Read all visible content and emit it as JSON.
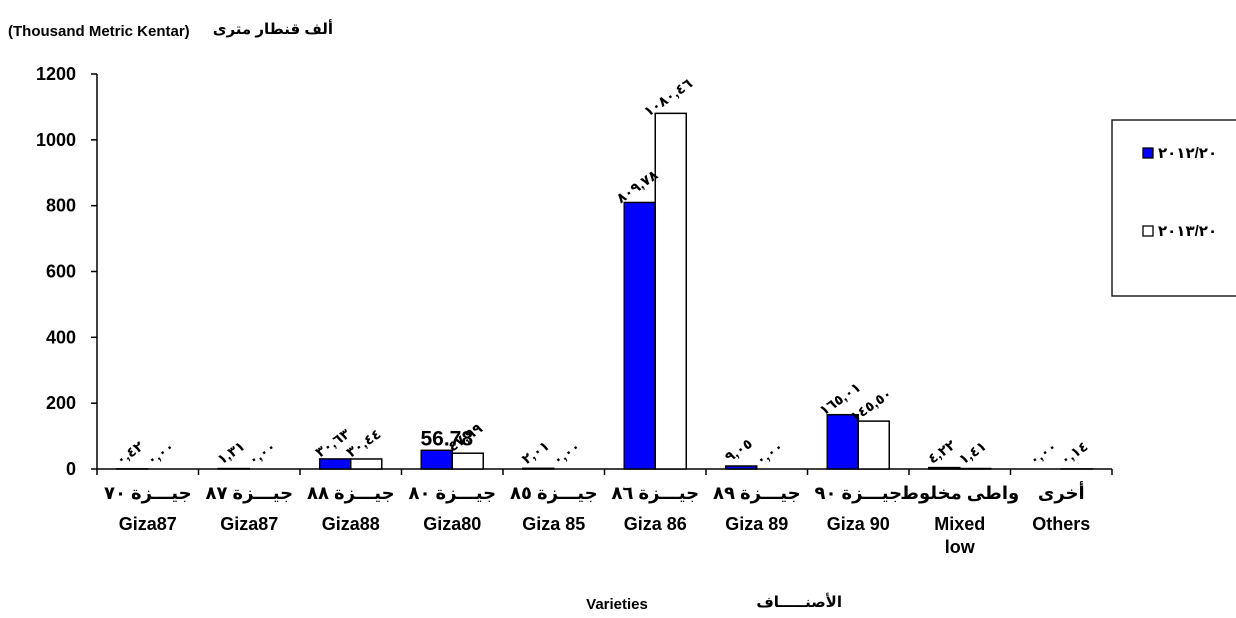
{
  "chart_data": {
    "type": "bar",
    "title": "",
    "unit_en": "(Thousand Metric Kentar)",
    "unit_ar": "ألف قنطار مترى",
    "xlabel_en": "Varieties",
    "xlabel_ar": "الأصنـــــاف",
    "ylim": [
      0,
      1200
    ],
    "yticks": [
      "0",
      "200",
      "400",
      "600",
      "800",
      "1000",
      "1200"
    ],
    "grid": false,
    "legend_position": "right",
    "categories": [
      {
        "ar": "جيـــزة ٧٠",
        "en": "Giza87"
      },
      {
        "ar": "جيـــزة ٨٧",
        "en": "Giza87"
      },
      {
        "ar": "جيـــزة ٨٨",
        "en": "Giza88"
      },
      {
        "ar": "جيـــزة ٨٠",
        "en": "Giza80"
      },
      {
        "ar": "جيـــزة ٨٥",
        "en": "Giza 85"
      },
      {
        "ar": "جيـــزة ٨٦",
        "en": "Giza 86"
      },
      {
        "ar": "جيـــزة ٨٩",
        "en": "Giza 89"
      },
      {
        "ar": "جيـــزة ٩٠",
        "en": "Giza 90"
      },
      {
        "ar": "واطى مخلوط",
        "en": "Mixed low"
      },
      {
        "ar": "أخرى",
        "en": "Others"
      }
    ],
    "series": [
      {
        "name": "٢٠١٢/٢٠",
        "color": "#0000ff",
        "values": [
          0.42,
          1.31,
          30.63,
          56.78,
          2.01,
          809.78,
          9.05,
          165.01,
          4.22,
          0.0
        ],
        "labels": [
          "٠,٤٢",
          "١,٣١",
          "٣٠,٦٣",
          "56.78",
          "٢,٠١",
          "٨٠٩,٧٨",
          "٩,٠٥",
          "١٦٥,٠١",
          "٤,٢٢",
          "٠,٠٠"
        ]
      },
      {
        "name": "٢٠١٣/٢٠",
        "color": "#ffffff",
        "values": [
          0.0,
          0.0,
          30.44,
          47.99,
          0.0,
          1080.46,
          0.0,
          145.5,
          1.41,
          0.14
        ],
        "labels": [
          "٠,٠٠",
          "٠,٠٠",
          "٣٠,٤٤",
          "٤٧,٩٩",
          "٠,٠٠",
          "١٠٨٠,٤٦",
          "٠,٠٠",
          "١٤٥,٥٠",
          "١,٤١",
          "٠,١٤"
        ]
      }
    ]
  }
}
